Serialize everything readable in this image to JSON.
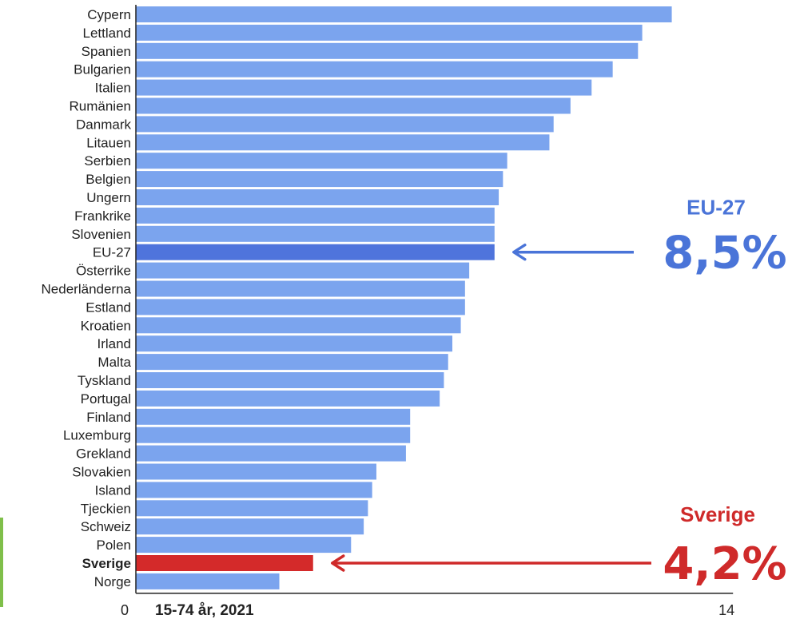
{
  "chart_data": {
    "type": "bar",
    "orientation": "horizontal",
    "subtitle": "15-74 år, 2021",
    "xlim": [
      0,
      14
    ],
    "x_tick_labels": [
      "0",
      "14"
    ],
    "grid": false,
    "categories": [
      "Cypern",
      "Lettland",
      "Spanien",
      "Bulgarien",
      "Italien",
      "Rumänien",
      "Danmark",
      "Litauen",
      "Serbien",
      "Belgien",
      "Ungern",
      "Frankrike",
      "Slovenien",
      "EU-27",
      "Österrike",
      "Nederländerna",
      "Estland",
      "Kroatien",
      "Irland",
      "Malta",
      "Tyskland",
      "Portugal",
      "Finland",
      "Luxemburg",
      "Grekland",
      "Slovakien",
      "Island",
      "Tjeckien",
      "Schweiz",
      "Polen",
      "Sverige",
      "Norge"
    ],
    "values": [
      12.7,
      12.0,
      11.9,
      11.3,
      10.8,
      10.3,
      9.9,
      9.8,
      8.8,
      8.7,
      8.6,
      8.5,
      8.5,
      8.5,
      7.9,
      7.8,
      7.8,
      7.7,
      7.5,
      7.4,
      7.3,
      7.2,
      6.5,
      6.5,
      6.4,
      5.7,
      5.6,
      5.5,
      5.4,
      5.1,
      4.2,
      3.4
    ],
    "highlights": {
      "EU-27": "#4f74dc",
      "Sverige": "#d42a2a"
    },
    "colors": {
      "default_bar": "#7ba4ee",
      "eu_bar": "#4f74dc",
      "sverige_bar": "#d42a2a",
      "eu_text": "#4a74d8",
      "sverige_text": "#cf2a2a"
    },
    "annotations": [
      {
        "target": "EU-27",
        "label": "EU-27",
        "value": "8,5%",
        "color": "#4a74d8"
      },
      {
        "target": "Sverige",
        "label": "Sverige",
        "value": "4,2%",
        "color": "#cf2a2a"
      }
    ]
  }
}
